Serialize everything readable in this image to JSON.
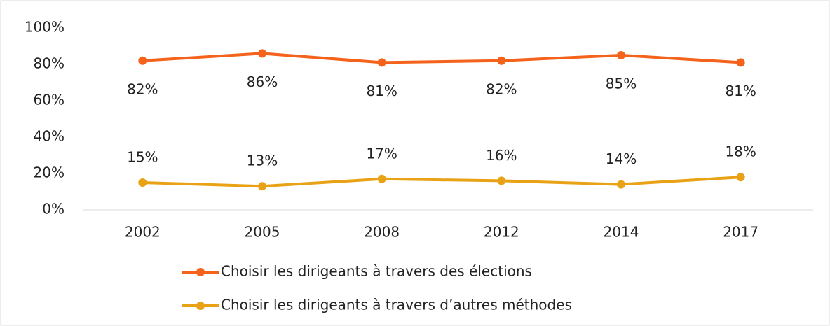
{
  "chart_data": {
    "type": "line",
    "categories": [
      "2002",
      "2005",
      "2008",
      "2012",
      "2014",
      "2017"
    ],
    "series": [
      {
        "name": "Choisir les dirigeants à travers des élections",
        "color": "#f4621b",
        "values": [
          82,
          86,
          81,
          82,
          85,
          81
        ],
        "value_labels": [
          "82%",
          "86%",
          "81%",
          "82%",
          "85%",
          "81%"
        ]
      },
      {
        "name": "Choisir les dirigeants à travers d’autres méthodes",
        "color": "#e9a216",
        "values": [
          15,
          13,
          17,
          16,
          14,
          18
        ],
        "value_labels": [
          "15%",
          "13%",
          "17%",
          "16%",
          "14%",
          "18%"
        ]
      }
    ],
    "ylim": [
      0,
      100
    ],
    "yticks": [
      {
        "value": 0,
        "label": "0%"
      },
      {
        "value": 20,
        "label": "20%"
      },
      {
        "value": 40,
        "label": "40%"
      },
      {
        "value": 60,
        "label": "60%"
      },
      {
        "value": 80,
        "label": "80%"
      },
      {
        "value": 100,
        "label": "100%"
      }
    ],
    "grid": false
  }
}
